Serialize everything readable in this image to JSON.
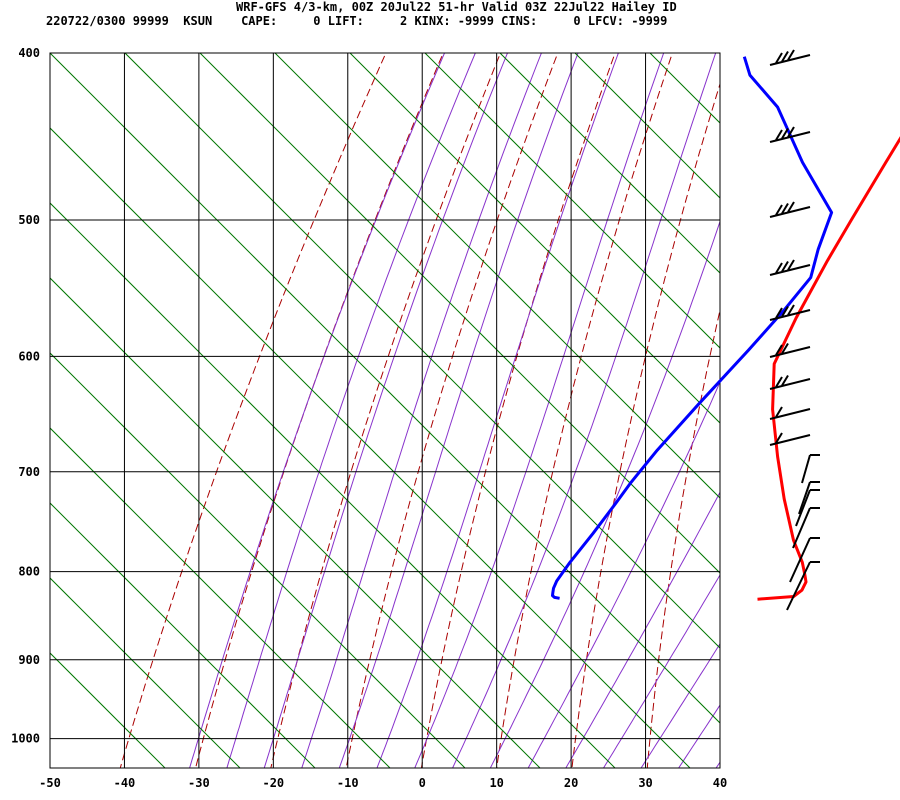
{
  "header": {
    "title": "WRF-GFS 4/3-km, 00Z 20Jul22 51-hr Valid 03Z 22Jul22 Hailey ID",
    "stats": "220722/0300 99999  KSUN    CAPE:     0 LIFT:     2 KINX: -9999 CINS:     0 LFCV: -9999"
  },
  "chart_data": {
    "type": "skew-t",
    "title": "WRF-GFS 4/3-km, 00Z 20Jul22 51-hr Valid 03Z 22Jul22 Hailey ID",
    "xlabel": "",
    "ylabel": "",
    "x_range": [
      -50,
      40
    ],
    "y_range_hpa": [
      400,
      1040
    ],
    "y_scale": "log",
    "x_ticks": [
      "-50",
      "-40",
      "-30",
      "-20",
      "-10",
      "0",
      "10",
      "20",
      "30",
      "40"
    ],
    "y_ticks": [
      "400",
      "500",
      "600",
      "700",
      "800",
      "900",
      "1000"
    ],
    "grid": true,
    "series": [
      {
        "color": "#ff0000",
        "x": [
          -20.0,
          -17.8,
          -15.0,
          -12.3,
          -10.3,
          -7.2,
          -4.3,
          1.3,
          8.0,
          14.3,
          20.8,
          24.8,
          26.7,
          27.8,
          28.3,
          28.0,
          23.5
        ],
        "y": [
          400,
          427,
          463,
          500,
          528,
          570,
          606,
          644,
          686,
          726,
          767,
          790,
          803,
          811,
          820,
          827,
          830
        ]
      },
      {
        "color": "#0000ff",
        "x": [
          -47.5,
          -44.4,
          -36.6,
          -26.2,
          -15.9,
          -13.0,
          -10.4,
          -9.8,
          -9.5,
          -9.3,
          -9.0,
          -8.4,
          -7.8,
          -7.0,
          -6.4,
          -5.8,
          -5.3,
          -4.8,
          -4.5,
          -4.0,
          -3.2
        ],
        "y": [
          402,
          412,
          430,
          463,
          495,
          520,
          540,
          565,
          595,
          640,
          680,
          710,
          730,
          760,
          790,
          810,
          818,
          823,
          826,
          828,
          829
        ]
      }
    ],
    "background_lines": {
      "isotherm_color": "#000000",
      "dry_adiabat_color": "#aa0000",
      "moist_adiabat_color": "#8833cc",
      "mixing_ratio_color": "#007700"
    },
    "wind_barb_color": "#000000"
  }
}
